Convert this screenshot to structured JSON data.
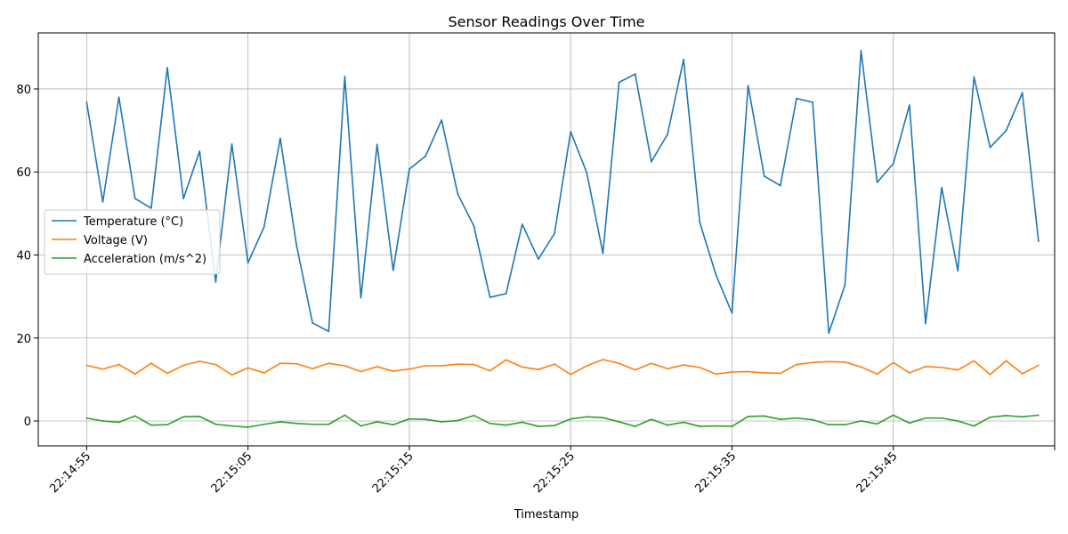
{
  "chart_data": {
    "type": "line",
    "title": "Sensor Readings Over Time",
    "xlabel": "Timestamp",
    "ylabel": "",
    "x_start": "22:14:55",
    "x_step_seconds": 1,
    "xlim": [
      -3,
      60
    ],
    "ylim": [
      -6,
      93.5
    ],
    "x_ticks": [
      {
        "x": 0,
        "label": "22:14:55"
      },
      {
        "x": 10,
        "label": "22:15:05"
      },
      {
        "x": 20,
        "label": "22:15:15"
      },
      {
        "x": 30,
        "label": "22:15:25"
      },
      {
        "x": 40,
        "label": "22:15:35"
      },
      {
        "x": 50,
        "label": "22:15:45"
      },
      {
        "x": 60,
        "label": ""
      }
    ],
    "y_ticks": [
      0,
      20,
      40,
      60,
      80
    ],
    "grid": true,
    "legend_position": "center-left",
    "series": [
      {
        "name": "Temperature (°C)",
        "color": "#1f77b4",
        "values": [
          76.8,
          52.8,
          78.0,
          53.6,
          51.3,
          85.1,
          53.6,
          65.0,
          33.5,
          66.7,
          38.1,
          46.8,
          68.1,
          42.5,
          23.6,
          21.6,
          83.0,
          29.7,
          66.6,
          36.3,
          60.7,
          63.8,
          72.5,
          54.7,
          47.0,
          29.8,
          30.7,
          47.4,
          39.0,
          45.2,
          69.7,
          59.8,
          40.4,
          81.6,
          83.6,
          62.5,
          69.0,
          87.1,
          47.9,
          35.3,
          26.0,
          80.8,
          59.0,
          56.7,
          77.7,
          76.8,
          21.2,
          32.7,
          89.2,
          57.5,
          62.0,
          76.1,
          23.5,
          56.2,
          36.2,
          82.9,
          65.9,
          70.0,
          79.1,
          43.3
        ]
      },
      {
        "name": "Voltage (V)",
        "color": "#ff7f0e",
        "values": [
          13.4,
          12.5,
          13.6,
          11.3,
          13.9,
          11.5,
          13.4,
          14.4,
          13.6,
          11.1,
          12.8,
          11.6,
          13.9,
          13.8,
          12.6,
          13.9,
          13.3,
          11.9,
          13.1,
          12.0,
          12.5,
          13.3,
          13.3,
          13.7,
          13.6,
          12.1,
          14.7,
          13.0,
          12.4,
          13.7,
          11.2,
          13.3,
          14.8,
          13.9,
          12.3,
          13.9,
          12.6,
          13.5,
          12.9,
          11.3,
          11.8,
          11.9,
          11.6,
          11.5,
          13.6,
          14.1,
          14.3,
          14.2,
          13.0,
          11.3,
          14.1,
          11.6,
          13.1,
          12.9,
          12.3,
          14.5,
          11.2,
          14.5,
          11.4,
          13.4
        ]
      },
      {
        "name": "Acceleration (m/s^2)",
        "color": "#2ca02c",
        "values": [
          0.7,
          0.0,
          -0.3,
          1.2,
          -1.0,
          -0.9,
          1.0,
          1.1,
          -0.8,
          -1.2,
          -1.5,
          -0.8,
          -0.2,
          -0.6,
          -0.8,
          -0.8,
          1.4,
          -1.2,
          -0.2,
          -0.9,
          0.5,
          0.4,
          -0.2,
          0.1,
          1.3,
          -0.6,
          -1.0,
          -0.3,
          -1.3,
          -1.1,
          0.5,
          1.0,
          0.8,
          -0.2,
          -1.3,
          0.4,
          -1.0,
          -0.3,
          -1.3,
          -1.2,
          -1.3,
          1.1,
          1.2,
          0.4,
          0.7,
          0.3,
          -0.9,
          -0.9,
          0.0,
          -0.7,
          1.4,
          -0.5,
          0.7,
          0.7,
          0.0,
          -1.2,
          0.9,
          1.3,
          1.0,
          1.4
        ]
      }
    ]
  }
}
